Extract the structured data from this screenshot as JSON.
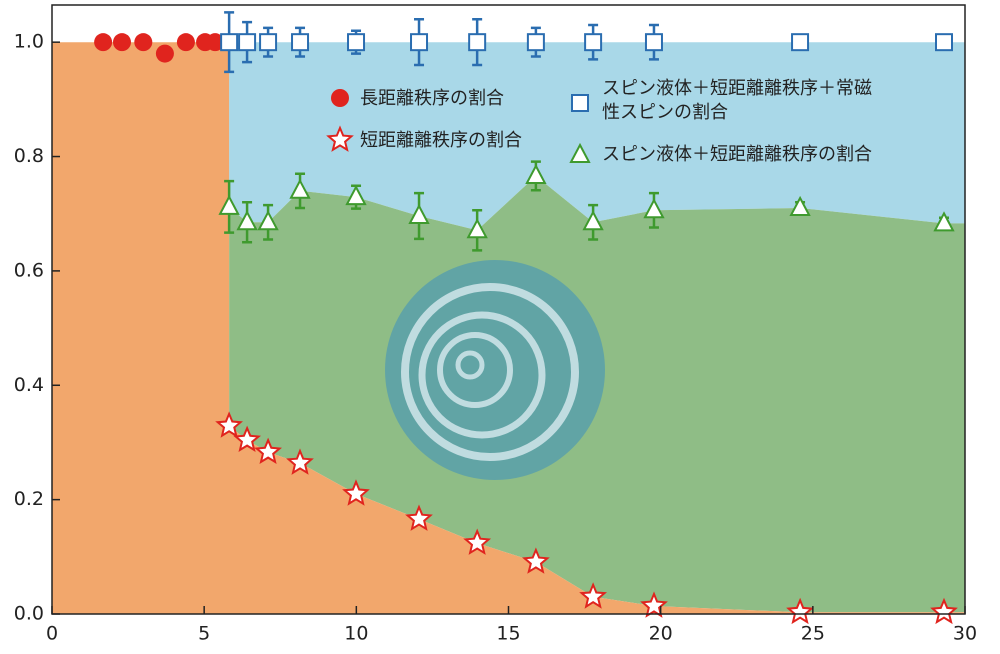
{
  "chart_data": {
    "type": "scatter",
    "xlim": [
      0,
      30
    ],
    "xticks": [
      0,
      5,
      10,
      15,
      20,
      25,
      30
    ],
    "ylim": [
      0,
      1.065
    ],
    "yticks": [
      {
        "value": 0,
        "label": "0.0"
      },
      0.2,
      0.4,
      0.6,
      0.8,
      {
        "value": 1,
        "label": "1.0"
      }
    ],
    "series": [
      {
        "name": "長距離秩序の割合",
        "color": "#e0241e",
        "marker": "circle",
        "x": [
          1.68,
          2.3,
          3.0,
          3.71,
          4.4,
          5.03,
          5.36
        ],
        "values": [
          1.0,
          1.0,
          1.0,
          0.98,
          1.0,
          1.0,
          1.0
        ]
      },
      {
        "name": "スピン液体＋短距離離秩序＋常磁性スピンの割合",
        "color": "#2a6db0",
        "marker": "square",
        "x": [
          5.82,
          6.41,
          7.1,
          8.15,
          9.99,
          12.06,
          13.97,
          15.9,
          17.78,
          19.78,
          24.58,
          29.31
        ],
        "values": [
          1.0,
          1.0,
          1.0,
          1.0,
          1.0,
          1.0,
          1.0,
          1.0,
          1.0,
          1.0,
          1.0,
          1.0
        ],
        "errors": [
          0.052,
          0.035,
          0.025,
          0.025,
          0.02,
          0.04,
          0.04,
          0.025,
          0.03,
          0.03,
          0,
          0
        ]
      },
      {
        "name": "スピン液体＋短距離離秩序の割合",
        "color": "#3f9a2e",
        "marker": "triangle",
        "x": [
          5.82,
          6.41,
          7.1,
          8.15,
          9.99,
          12.06,
          13.97,
          15.9,
          17.78,
          19.78,
          24.58,
          29.31
        ],
        "values": [
          0.712,
          0.685,
          0.685,
          0.74,
          0.729,
          0.696,
          0.671,
          0.766,
          0.685,
          0.706,
          0.71,
          0.683
        ],
        "errors": [
          0.045,
          0.035,
          0.03,
          0.03,
          0.02,
          0.04,
          0.035,
          0.025,
          0.03,
          0.03,
          0.01,
          0.01
        ]
      },
      {
        "name": "短距離離秩序の割合",
        "color": "#e0241e",
        "marker": "star",
        "x": [
          5.82,
          6.41,
          7.1,
          8.15,
          9.99,
          12.06,
          13.97,
          15.9,
          17.78,
          19.78,
          24.58,
          29.31
        ],
        "values": [
          0.329,
          0.304,
          0.283,
          0.264,
          0.21,
          0.166,
          0.124,
          0.091,
          0.03,
          0.014,
          0.003,
          0.003
        ]
      }
    ]
  }
}
